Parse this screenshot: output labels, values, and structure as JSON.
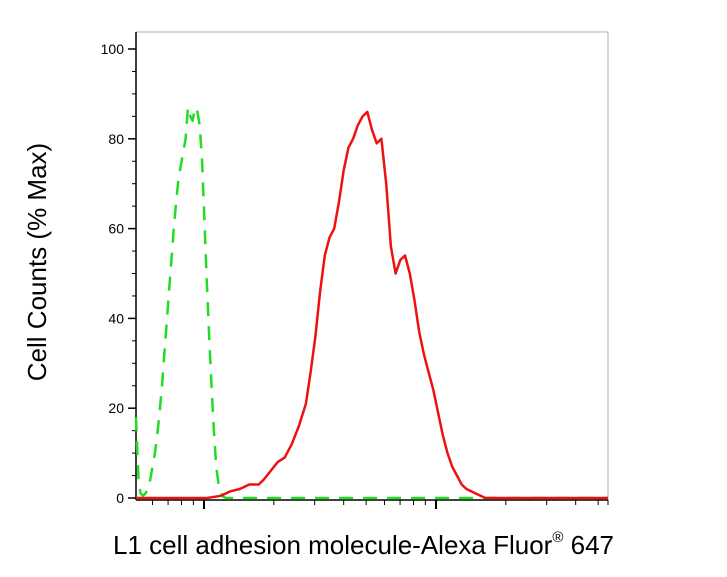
{
  "chart_data": {
    "type": "line",
    "title": "",
    "xlabel_main": "L1 cell adhesion molecule-Alexa Fluor",
    "xlabel_sup": "®",
    "xlabel_tail": " 647",
    "ylabel": "Cell Counts (% Max)",
    "xscale": "log",
    "ylim": [
      0,
      100
    ],
    "yticks": [
      0,
      20,
      40,
      60,
      80,
      100
    ],
    "ytick_labels": [
      "0",
      "20",
      "40",
      "60",
      "80",
      "100"
    ],
    "grid": false,
    "legend": "none",
    "series": [
      {
        "style": "dashed",
        "color": "#22dd22",
        "x": [
          0.0,
          0.3,
          0.6,
          1.0,
          1.5,
          2.0,
          2.5,
          3.0,
          3.5,
          4.0,
          4.5,
          5.0,
          5.5,
          6.0,
          6.5,
          7.0,
          7.5,
          8.0,
          8.5,
          9.0,
          9.5,
          10.0,
          10.5,
          11.0,
          11.5,
          12.0,
          12.5,
          13.0,
          13.5,
          14.0,
          14.5,
          15.0,
          15.5,
          16.0,
          16.5,
          17.0,
          17.5,
          18.0,
          18.5,
          19.0,
          19.5,
          20.0,
          20.5,
          21.0,
          21.5,
          22.0,
          23.0,
          24.0,
          26.0,
          30.0,
          35.0,
          40.0,
          45.0,
          50.0,
          55.0,
          60.0,
          65.0,
          70.0,
          75.0,
          80.0,
          85.0,
          90.0,
          95.0,
          100.0
        ],
        "y": [
          18,
          10,
          3,
          1,
          0.5,
          1,
          2,
          4,
          7,
          10,
          14,
          19,
          25,
          32,
          39,
          46,
          53,
          60,
          66,
          71,
          74,
          77,
          80,
          87,
          85,
          84,
          87,
          86,
          83,
          75,
          62,
          48,
          36,
          25,
          15,
          7,
          3,
          1,
          0.3,
          0,
          0,
          0,
          0,
          0,
          0,
          0,
          0,
          0,
          0,
          0,
          0,
          0,
          0,
          0,
          0,
          0,
          0,
          0,
          0,
          0,
          0,
          0,
          0,
          0
        ]
      },
      {
        "style": "solid",
        "color": "#ee1111",
        "x": [
          0.0,
          5.0,
          10.0,
          15.0,
          18.0,
          20.0,
          22.0,
          24.0,
          26.0,
          27.0,
          28.5,
          30.0,
          31.5,
          33.0,
          34.5,
          36.0,
          37.0,
          38.0,
          39.0,
          40.0,
          41.0,
          42.0,
          43.0,
          44.0,
          45.0,
          46.0,
          47.0,
          48.0,
          49.0,
          50.0,
          51.0,
          52.0,
          53.0,
          54.0,
          55.0,
          56.0,
          57.0,
          58.0,
          59.0,
          60.0,
          61.0,
          62.0,
          63.0,
          64.0,
          65.0,
          66.0,
          67.0,
          68.0,
          69.0,
          70.0,
          71.0,
          72.0,
          73.0,
          74.0,
          75.0,
          76.0,
          77.0,
          78.0,
          79.0,
          80.0,
          81.0,
          82.0,
          84.0,
          86.0,
          88.0,
          90.0,
          95.0,
          100.0
        ],
        "y": [
          0,
          0,
          0,
          0,
          0.5,
          1.5,
          2,
          3,
          3,
          4,
          6,
          8,
          9,
          12,
          16,
          21,
          28,
          36,
          46,
          54,
          58,
          60,
          66,
          73,
          78,
          80,
          83,
          85,
          86,
          82,
          79,
          80,
          70,
          56,
          50,
          53,
          54,
          50,
          44,
          37,
          32,
          28,
          24,
          19,
          14,
          10,
          7,
          5,
          3,
          2,
          1.5,
          1,
          0.5,
          0,
          0,
          0,
          0,
          0,
          0,
          0,
          0,
          0,
          0,
          0,
          0,
          0,
          0,
          0
        ]
      }
    ]
  }
}
